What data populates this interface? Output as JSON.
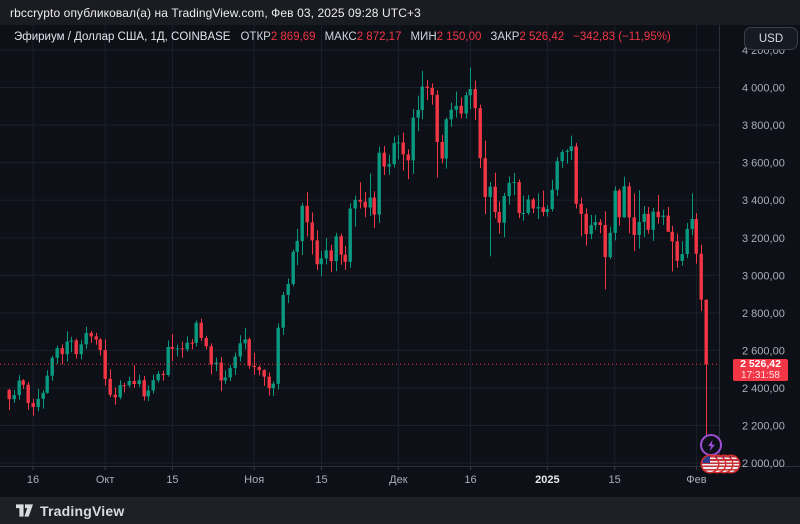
{
  "attribution": {
    "text": "rbccrypto опубликовал(а) на TradingView.com, Фев 03, 2025 09:28 UTC+3"
  },
  "header": {
    "symbol_title": "Эфириум / Доллар США, 1Д, COINBASE",
    "stats": [
      {
        "label": "ОТКР",
        "value": "2 869,69"
      },
      {
        "label": "МАКС",
        "value": "2 872,17"
      },
      {
        "label": "МИН",
        "value": "2 150,00"
      },
      {
        "label": "ЗАКР",
        "value": "2 526,42"
      }
    ],
    "change_text": "−342,83 (−11,95%)",
    "currency_label": "USD"
  },
  "price_label": {
    "price": "2 526,42",
    "countdown": "17:31:58"
  },
  "footer": {
    "brand": "TradingView"
  },
  "colors": {
    "background": "#0d1017",
    "panel": "#1a1c21",
    "up": "#089981",
    "down": "#f23645",
    "grid": "#1a1f2d",
    "axis_text": "#a9aeb9",
    "axis_text_bright": "#e4e7ee",
    "separator": "#2a2e39",
    "accent_purple": "#9c4fd4"
  },
  "chart_data": {
    "type": "candlestick",
    "title": "Эфириум / Доллар США",
    "interval": "1Д",
    "exchange": "COINBASE",
    "last_price": 2526.42,
    "last_candle": {
      "open": 2869.69,
      "high": 2872.17,
      "low": 2150.0,
      "close": 2526.42
    },
    "y_axis": {
      "min": 2000,
      "max": 4200,
      "step": 200,
      "ticks": [
        {
          "value": 4200,
          "label": "4 200,00"
        },
        {
          "value": 4000,
          "label": "4 000,00"
        },
        {
          "value": 3800,
          "label": "3 800,00"
        },
        {
          "value": 3600,
          "label": "3 600,00"
        },
        {
          "value": 3400,
          "label": "3 400,00"
        },
        {
          "value": 3200,
          "label": "3 200,00"
        },
        {
          "value": 3000,
          "label": "3 000,00"
        },
        {
          "value": 2800,
          "label": "2 800,00"
        },
        {
          "value": 2600,
          "label": "2 600,00"
        },
        {
          "value": 2400,
          "label": "2 400,00"
        },
        {
          "value": 2200,
          "label": "2 200,00"
        },
        {
          "value": 2000,
          "label": "2 000,00"
        }
      ]
    },
    "x_axis": {
      "range": "11 Сен 2024 — 3 Фев 2025",
      "ticks": [
        {
          "label": "16",
          "index": 5
        },
        {
          "label": "Окт",
          "index": 20
        },
        {
          "label": "15",
          "index": 34
        },
        {
          "label": "Ноя",
          "index": 51
        },
        {
          "label": "15",
          "index": 65
        },
        {
          "label": "Дек",
          "index": 81
        },
        {
          "label": "16",
          "index": 96
        },
        {
          "label": "2025",
          "index": 112,
          "emphasis": true
        },
        {
          "label": "15",
          "index": 126
        },
        {
          "label": "Фев",
          "index": 143
        }
      ]
    },
    "candles": [
      [
        2390,
        2395,
        2282,
        2340
      ],
      [
        2340,
        2390,
        2321,
        2362
      ],
      [
        2362,
        2468,
        2337,
        2440
      ],
      [
        2440,
        2448,
        2395,
        2417
      ],
      [
        2417,
        2432,
        2283,
        2320
      ],
      [
        2320,
        2342,
        2252,
        2298
      ],
      [
        2298,
        2395,
        2276,
        2342
      ],
      [
        2342,
        2388,
        2290,
        2374
      ],
      [
        2374,
        2494,
        2370,
        2465
      ],
      [
        2465,
        2571,
        2438,
        2561
      ],
      [
        2561,
        2625,
        2528,
        2612
      ],
      [
        2612,
        2632,
        2525,
        2580
      ],
      [
        2580,
        2702,
        2540,
        2647
      ],
      [
        2647,
        2672,
        2590,
        2653
      ],
      [
        2653,
        2663,
        2556,
        2580
      ],
      [
        2580,
        2657,
        2552,
        2632
      ],
      [
        2632,
        2726,
        2608,
        2693
      ],
      [
        2693,
        2703,
        2641,
        2675
      ],
      [
        2675,
        2694,
        2630,
        2658
      ],
      [
        2658,
        2665,
        2572,
        2602
      ],
      [
        2602,
        2659,
        2413,
        2448
      ],
      [
        2448,
        2499,
        2352,
        2364
      ],
      [
        2364,
        2403,
        2310,
        2350
      ],
      [
        2350,
        2441,
        2339,
        2415
      ],
      [
        2415,
        2428,
        2376,
        2414
      ],
      [
        2414,
        2459,
        2403,
        2437
      ],
      [
        2437,
        2521,
        2401,
        2421
      ],
      [
        2421,
        2470,
        2405,
        2441
      ],
      [
        2441,
        2464,
        2333,
        2355
      ],
      [
        2355,
        2414,
        2330,
        2387
      ],
      [
        2387,
        2471,
        2370,
        2441
      ],
      [
        2441,
        2490,
        2429,
        2475
      ],
      [
        2475,
        2492,
        2438,
        2469
      ],
      [
        2469,
        2653,
        2460,
        2618
      ],
      [
        2618,
        2688,
        2543,
        2608
      ],
      [
        2608,
        2631,
        2568,
        2611
      ],
      [
        2611,
        2647,
        2561,
        2606
      ],
      [
        2606,
        2675,
        2594,
        2641
      ],
      [
        2641,
        2661,
        2606,
        2640
      ],
      [
        2640,
        2759,
        2621,
        2747
      ],
      [
        2747,
        2769,
        2650,
        2666
      ],
      [
        2666,
        2678,
        2606,
        2622
      ],
      [
        2622,
        2638,
        2472,
        2525
      ],
      [
        2525,
        2562,
        2489,
        2535
      ],
      [
        2535,
        2565,
        2382,
        2440
      ],
      [
        2440,
        2494,
        2421,
        2456
      ],
      [
        2456,
        2523,
        2437,
        2506
      ],
      [
        2506,
        2588,
        2469,
        2567
      ],
      [
        2567,
        2681,
        2541,
        2638
      ],
      [
        2638,
        2720,
        2606,
        2659
      ],
      [
        2659,
        2669,
        2502,
        2518
      ],
      [
        2518,
        2587,
        2470,
        2511
      ],
      [
        2511,
        2520,
        2467,
        2495
      ],
      [
        2495,
        2499,
        2411,
        2460
      ],
      [
        2460,
        2483,
        2360,
        2399
      ],
      [
        2399,
        2434,
        2357,
        2422
      ],
      [
        2422,
        2744,
        2392,
        2721
      ],
      [
        2721,
        2912,
        2682,
        2895
      ],
      [
        2895,
        2983,
        2852,
        2954
      ],
      [
        2954,
        3137,
        2942,
        3125
      ],
      [
        3125,
        3247,
        3054,
        3183
      ],
      [
        3183,
        3386,
        3108,
        3370
      ],
      [
        3370,
        3443,
        3207,
        3282
      ],
      [
        3282,
        3335,
        3111,
        3186
      ],
      [
        3186,
        3240,
        3028,
        3059
      ],
      [
        3059,
        3130,
        2994,
        3090
      ],
      [
        3090,
        3198,
        3058,
        3133
      ],
      [
        3133,
        3162,
        3016,
        3076
      ],
      [
        3076,
        3226,
        3022,
        3208
      ],
      [
        3208,
        3222,
        3056,
        3110
      ],
      [
        3110,
        3157,
        3029,
        3072
      ],
      [
        3072,
        3384,
        3041,
        3356
      ],
      [
        3356,
        3424,
        3258,
        3402
      ],
      [
        3402,
        3496,
        3356,
        3392
      ],
      [
        3392,
        3444,
        3310,
        3361
      ],
      [
        3361,
        3542,
        3316,
        3414
      ],
      [
        3414,
        3447,
        3252,
        3323
      ],
      [
        3323,
        3685,
        3280,
        3653
      ],
      [
        3653,
        3689,
        3534,
        3579
      ],
      [
        3579,
        3643,
        3536,
        3592
      ],
      [
        3592,
        3739,
        3574,
        3704
      ],
      [
        3704,
        3746,
        3617,
        3708
      ],
      [
        3708,
        3759,
        3558,
        3644
      ],
      [
        3644,
        3671,
        3512,
        3612
      ],
      [
        3612,
        3886,
        3540,
        3840
      ],
      [
        3840,
        3957,
        3767,
        3881
      ],
      [
        3881,
        4089,
        3831,
        4005
      ],
      [
        4005,
        4040,
        3934,
        3998
      ],
      [
        3998,
        4022,
        3909,
        3961
      ],
      [
        3961,
        3985,
        3521,
        3710
      ],
      [
        3710,
        3748,
        3596,
        3622
      ],
      [
        3622,
        3840,
        3568,
        3831
      ],
      [
        3831,
        3920,
        3791,
        3882
      ],
      [
        3882,
        3978,
        3840,
        3903
      ],
      [
        3903,
        3948,
        3836,
        3862
      ],
      [
        3862,
        3976,
        3834,
        3959
      ],
      [
        3959,
        4107,
        3885,
        3992
      ],
      [
        3992,
        4037,
        3827,
        3890
      ],
      [
        3890,
        3909,
        3571,
        3624
      ],
      [
        3624,
        3717,
        3326,
        3417
      ],
      [
        3417,
        3497,
        3101,
        3472
      ],
      [
        3472,
        3547,
        3303,
        3337
      ],
      [
        3337,
        3393,
        3221,
        3280
      ],
      [
        3280,
        3439,
        3203,
        3422
      ],
      [
        3422,
        3526,
        3376,
        3492
      ],
      [
        3492,
        3545,
        3427,
        3497
      ],
      [
        3497,
        3511,
        3304,
        3332
      ],
      [
        3332,
        3425,
        3290,
        3332
      ],
      [
        3332,
        3428,
        3322,
        3404
      ],
      [
        3404,
        3413,
        3331,
        3356
      ],
      [
        3356,
        3437,
        3300,
        3363
      ],
      [
        3363,
        3451,
        3315,
        3337
      ],
      [
        3337,
        3374,
        3313,
        3353
      ],
      [
        3353,
        3509,
        3340,
        3456
      ],
      [
        3456,
        3629,
        3423,
        3608
      ],
      [
        3608,
        3669,
        3572,
        3657
      ],
      [
        3657,
        3673,
        3595,
        3662
      ],
      [
        3662,
        3744,
        3614,
        3687
      ],
      [
        3687,
        3705,
        3356,
        3381
      ],
      [
        3381,
        3414,
        3208,
        3327
      ],
      [
        3327,
        3357,
        3158,
        3219
      ],
      [
        3219,
        3322,
        3193,
        3267
      ],
      [
        3267,
        3322,
        3242,
        3283
      ],
      [
        3283,
        3299,
        3224,
        3268
      ],
      [
        3268,
        3341,
        2925,
        3097
      ],
      [
        3097,
        3258,
        3087,
        3226
      ],
      [
        3226,
        3473,
        3186,
        3451
      ],
      [
        3451,
        3461,
        3265,
        3309
      ],
      [
        3309,
        3525,
        3307,
        3474
      ],
      [
        3474,
        3494,
        3224,
        3308
      ],
      [
        3308,
        3436,
        3130,
        3215
      ],
      [
        3215,
        3453,
        3142,
        3284
      ],
      [
        3284,
        3369,
        3204,
        3327
      ],
      [
        3327,
        3364,
        3222,
        3242
      ],
      [
        3242,
        3359,
        3183,
        3339
      ],
      [
        3339,
        3428,
        3275,
        3310
      ],
      [
        3310,
        3350,
        3268,
        3318
      ],
      [
        3318,
        3364,
        3232,
        3232
      ],
      [
        3232,
        3263,
        3020,
        3181
      ],
      [
        3181,
        3222,
        3040,
        3077
      ],
      [
        3077,
        3181,
        3051,
        3113
      ],
      [
        3113,
        3278,
        3092,
        3247
      ],
      [
        3247,
        3437,
        3213,
        3300
      ],
      [
        3300,
        3331,
        3062,
        3115
      ],
      [
        3115,
        3163,
        2810,
        2870
      ],
      [
        2869.69,
        2872.17,
        2150.0,
        2526.42
      ]
    ],
    "markers": {
      "lightning_event": 1,
      "us_flag_events": 4
    }
  }
}
